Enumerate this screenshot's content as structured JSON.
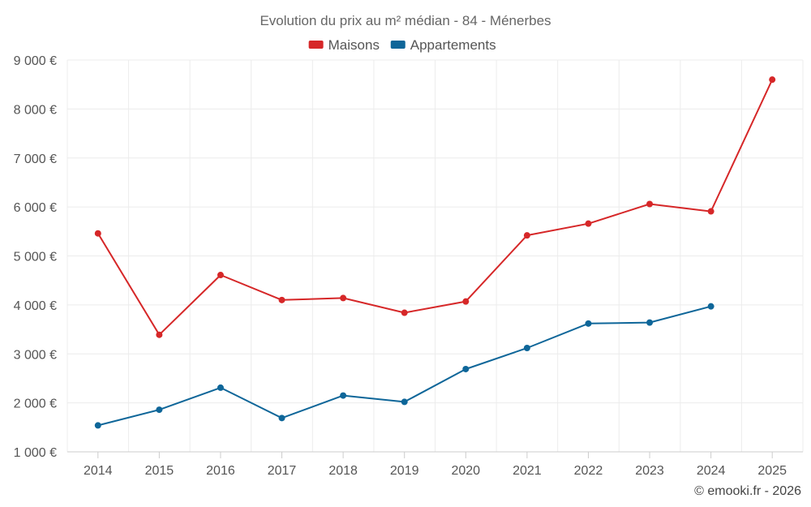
{
  "chart_data": {
    "type": "line",
    "title": "Evolution du prix au m² médian - 84 - Ménerbes",
    "categories": [
      "2014",
      "2015",
      "2016",
      "2017",
      "2018",
      "2019",
      "2020",
      "2021",
      "2022",
      "2023",
      "2024",
      "2025"
    ],
    "series": [
      {
        "name": "Maisons",
        "color": "#d62728",
        "values": [
          5460,
          3390,
          4610,
          4100,
          4140,
          3840,
          4070,
          5420,
          5660,
          6060,
          5910,
          8600
        ]
      },
      {
        "name": "Appartements",
        "color": "#0e6699",
        "values": [
          1540,
          1860,
          2310,
          1690,
          2150,
          2020,
          2690,
          3120,
          3620,
          3640,
          3970,
          null
        ]
      }
    ],
    "ylim": [
      1000,
      9000
    ],
    "yticks": [
      1000,
      2000,
      3000,
      4000,
      5000,
      6000,
      7000,
      8000,
      9000
    ],
    "ytick_labels": [
      "1 000 €",
      "2 000 €",
      "3 000 €",
      "4 000 €",
      "5 000 €",
      "6 000 €",
      "7 000 €",
      "8 000 €",
      "9 000 €"
    ],
    "xlabel": "",
    "ylabel": "",
    "grid": true,
    "legend_position": "top-center"
  },
  "credit": "© emooki.fr - 2026"
}
